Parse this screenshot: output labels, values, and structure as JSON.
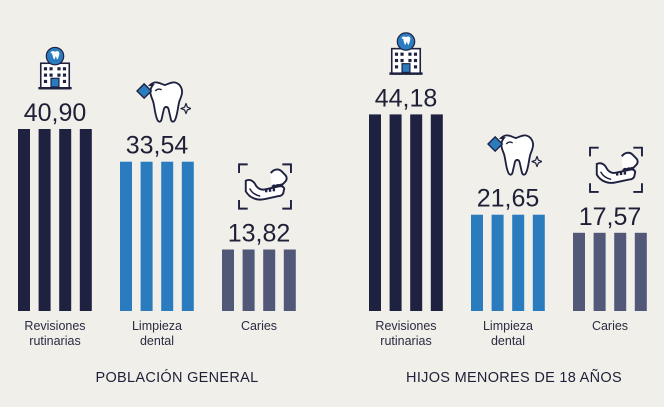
{
  "chart_data": [
    {
      "type": "bar",
      "title": "POBLACIÓN GENERAL",
      "categories": [
        {
          "label_lines": [
            "Revisiones",
            "rutinarias"
          ],
          "icon": "dental-clinic-icon"
        },
        {
          "label_lines": [
            "Limpieza",
            "dental"
          ],
          "icon": "sparkling-tooth-icon"
        },
        {
          "label_lines": [
            "Caries"
          ],
          "icon": "jaw-xray-icon"
        }
      ],
      "values": [
        40.9,
        33.54,
        13.82
      ],
      "value_labels": [
        "40,90",
        "33,54",
        "13,82"
      ],
      "colors": [
        "#1e2140",
        "#2b7cbf",
        "#525878"
      ],
      "ylim": [
        0,
        50
      ],
      "grid": false
    },
    {
      "type": "bar",
      "title": "HIJOS MENORES DE 18 AÑOS",
      "categories": [
        {
          "label_lines": [
            "Revisiones",
            "rutinarias"
          ],
          "icon": "dental-clinic-icon"
        },
        {
          "label_lines": [
            "Limpieza",
            "dental"
          ],
          "icon": "sparkling-tooth-icon"
        },
        {
          "label_lines": [
            "Caries"
          ],
          "icon": "jaw-xray-icon"
        }
      ],
      "values": [
        44.18,
        21.65,
        17.57
      ],
      "value_labels": [
        "44,18",
        "21,65",
        "17,57"
      ],
      "colors": [
        "#1e2140",
        "#2b7cbf",
        "#525878"
      ],
      "ylim": [
        0,
        50
      ],
      "grid": false
    }
  ]
}
